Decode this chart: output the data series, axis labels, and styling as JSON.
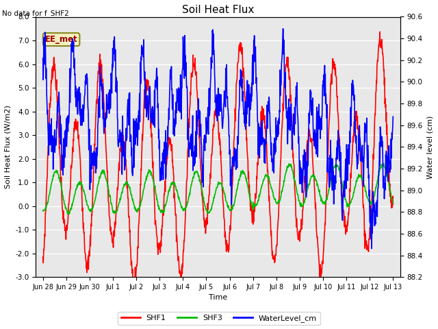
{
  "title": "Soil Heat Flux",
  "xlabel": "Time",
  "ylabel_left": "Soil Heat Flux (W/m2)",
  "ylabel_right": "Water level (cm)",
  "ylim_left": [
    -3.0,
    8.0
  ],
  "ylim_right": [
    88.2,
    90.6
  ],
  "yticks_left": [
    -3.0,
    -2.0,
    -1.0,
    0.0,
    1.0,
    2.0,
    3.0,
    4.0,
    5.0,
    6.0,
    7.0,
    8.0
  ],
  "yticks_right": [
    88.2,
    88.4,
    88.6,
    88.8,
    89.0,
    89.2,
    89.4,
    89.6,
    89.8,
    90.0,
    90.2,
    90.4,
    90.6
  ],
  "no_data_text": "No data for f_SHF2",
  "annotation_text": "EE_met",
  "background_color": "#e8e8e8",
  "color_shf1": "#ff0000",
  "color_shf3": "#00bb00",
  "color_wl": "#0000ff",
  "legend_labels": [
    "SHF1",
    "SHF3",
    "WaterLevel_cm"
  ],
  "xtick_labels": [
    "Jun 28",
    "Jun 29",
    "Jun 30",
    "Jul 1",
    "Jul 2",
    "Jul 3",
    "Jul 4",
    "Jul 5",
    "Jul 6",
    "Jul 7",
    "Jul 8",
    "Jul 9",
    "Jul 10",
    "Jul 11",
    "Jul 12",
    "Jul 13"
  ],
  "figsize": [
    6.4,
    4.8
  ],
  "dpi": 100
}
